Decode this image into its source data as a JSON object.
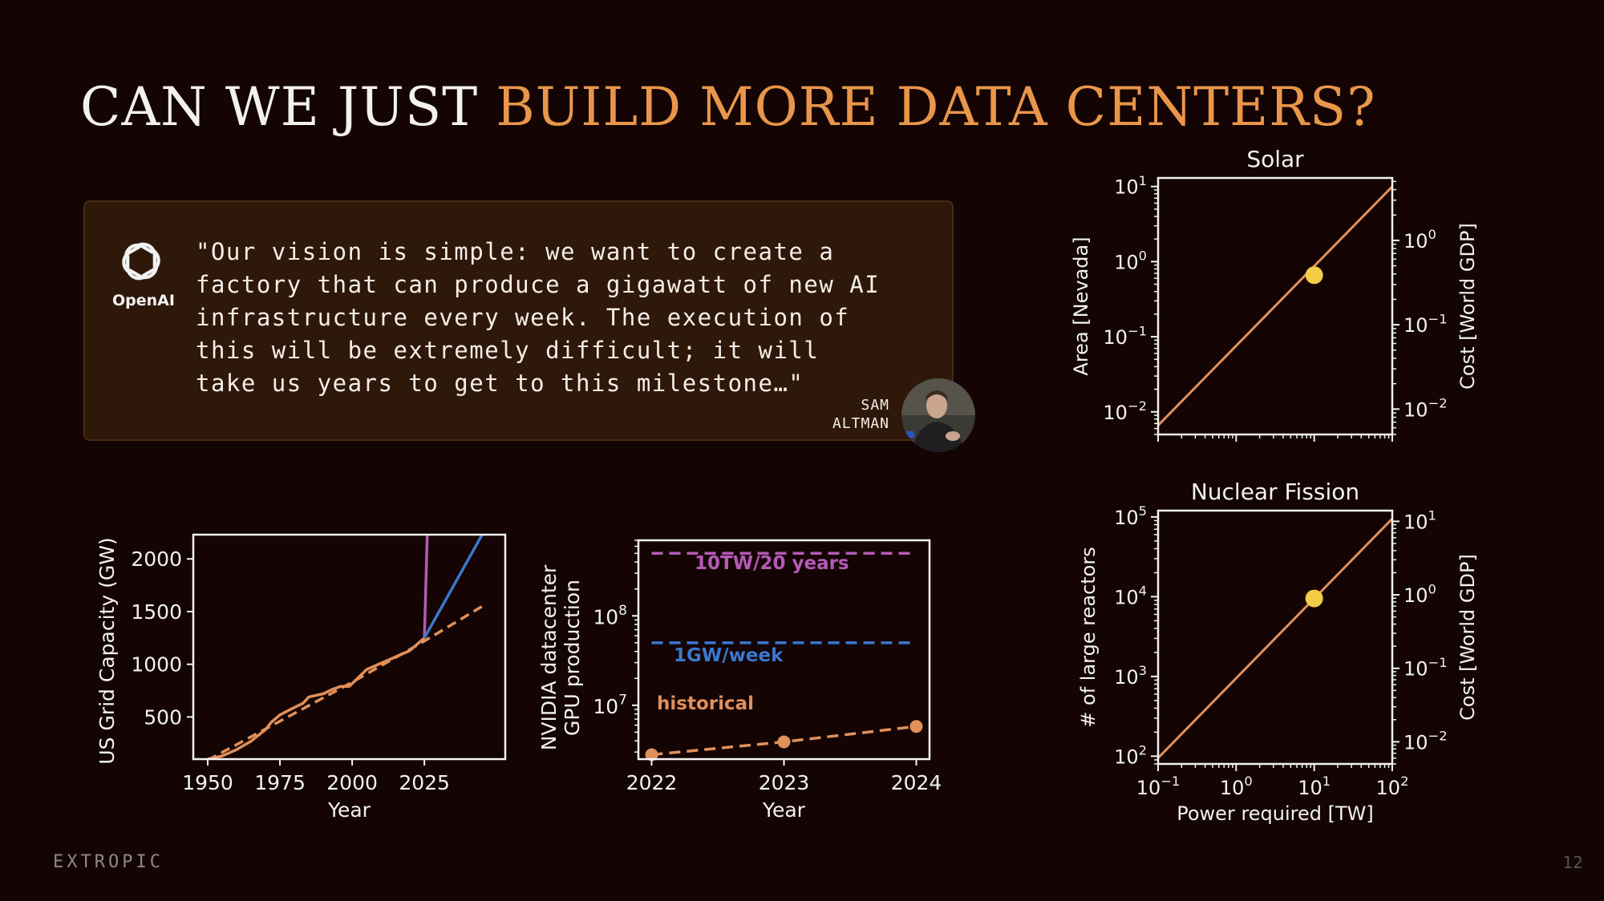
{
  "title": {
    "white": "CAN WE JUST",
    "orange": "BUILD MORE DATA CENTERS?"
  },
  "quote": {
    "brand": "OpenAI",
    "text": "\"Our vision is simple: we want to create a\nfactory that can produce a gigawatt of new AI\ninfrastructure every week. The execution of\nthis will be extremely difficult; it will\ntake us years to get to this milestone…\"",
    "author": "SAM\nALTMAN"
  },
  "footer": {
    "logo": "EXTROPIC",
    "page": "12"
  },
  "colors": {
    "orange": "#e9964a",
    "line": "#e0905a",
    "pink": "#b45ab5",
    "blue": "#3a78cf",
    "dot": "#f2cd45"
  },
  "chart_data": [
    {
      "type": "line",
      "title": "",
      "xlabel": "Year",
      "ylabel": "US Grid Capacity (GW)",
      "xlim": [
        1945,
        2053
      ],
      "ylim": [
        100,
        2230
      ],
      "xticks": [
        1950,
        1975,
        2000,
        2025
      ],
      "yticks": [
        500,
        1000,
        1500,
        2000
      ],
      "series": [
        {
          "style": "solid",
          "color": "#e0905a",
          "points": [
            [
              1950,
              100
            ],
            [
              1955,
              130
            ],
            [
              1960,
              190
            ],
            [
              1965,
              270
            ],
            [
              1970,
              380
            ],
            [
              1972,
              450
            ],
            [
              1975,
              520
            ],
            [
              1980,
              590
            ],
            [
              1983,
              630
            ],
            [
              1985,
              690
            ],
            [
              1990,
              720
            ],
            [
              1993,
              760
            ],
            [
              1996,
              790
            ],
            [
              1999,
              790
            ],
            [
              2002,
              870
            ],
            [
              2005,
              950
            ],
            [
              2010,
              1010
            ],
            [
              2015,
              1070
            ],
            [
              2020,
              1130
            ],
            [
              2025,
              1250
            ]
          ]
        },
        {
          "style": "dashed",
          "color": "#e0905a",
          "points": [
            [
              1950,
              90
            ],
            [
              1975,
              460
            ],
            [
              2000,
              830
            ],
            [
              2025,
              1220
            ],
            [
              2045,
              1550
            ]
          ]
        },
        {
          "style": "solid",
          "color": "#b45ab5",
          "points": [
            [
              2025,
              1250
            ],
            [
              2026,
              2230
            ]
          ]
        },
        {
          "style": "solid",
          "color": "#3a78cf",
          "points": [
            [
              2025,
              1250
            ],
            [
              2045,
              2230
            ]
          ]
        }
      ]
    },
    {
      "type": "line",
      "title": "",
      "xlabel": "Year",
      "ylabel": "NVIDIA datacenter\nGPU production",
      "yscale": "log",
      "xlim": [
        2021.9,
        2024.1
      ],
      "ylim": [
        2500000,
        700000000
      ],
      "xticks": [
        2022,
        2023,
        2024
      ],
      "yticks": [
        "10^7",
        "10^8"
      ],
      "series": [
        {
          "label": "10TW/20 years",
          "style": "dashed",
          "color": "#b45ab5",
          "points": [
            [
              2022,
              500000000
            ],
            [
              2024,
              500000000
            ]
          ]
        },
        {
          "label": "1GW/week",
          "style": "dashed",
          "color": "#3a78cf",
          "points": [
            [
              2022,
              50000000
            ],
            [
              2024,
              50000000
            ]
          ]
        },
        {
          "label": "historical",
          "style": "dashed-markers",
          "color": "#e0905a",
          "points": [
            [
              2022,
              2800000
            ],
            [
              2023,
              3900000
            ],
            [
              2024,
              5800000
            ]
          ]
        }
      ]
    },
    {
      "type": "line",
      "title": "Solar",
      "xlabel": "",
      "ylabel": "Area [Nevada]",
      "y2label": "Cost [World GDP]",
      "xscale": "log",
      "yscale": "log",
      "xlim": [
        0.1,
        100
      ],
      "ylim": [
        0.005,
        13
      ],
      "y2lim": [
        0.005,
        5.5
      ],
      "yticks": [
        "10^1",
        "10^0",
        "10^-1",
        "10^-2"
      ],
      "y2ticks": [
        "10^0",
        "10^-1",
        "10^-2"
      ],
      "series": [
        {
          "style": "solid",
          "color": "#e0905a",
          "points": [
            [
              0.1,
              0.0066
            ],
            [
              100,
              10
            ]
          ]
        }
      ],
      "marker": {
        "x": 10,
        "y": 0.66,
        "color": "#f2cd45"
      }
    },
    {
      "type": "line",
      "title": "Nuclear Fission",
      "xlabel": "Power required [TW]",
      "ylabel": "# of large reactors",
      "y2label": "Cost [World GDP]",
      "xscale": "log",
      "yscale": "log",
      "xlim": [
        0.1,
        100
      ],
      "ylim": [
        80,
        120000
      ],
      "y2lim": [
        0.005,
        14
      ],
      "xticks": [
        "10^-1",
        "10^0",
        "10^1",
        "10^2"
      ],
      "yticks": [
        "10^5",
        "10^4",
        "10^3",
        "10^2"
      ],
      "y2ticks": [
        "10^1",
        "10^0",
        "10^-1",
        "10^-2"
      ],
      "series": [
        {
          "style": "solid",
          "color": "#e0905a",
          "points": [
            [
              0.1,
              95
            ],
            [
              100,
              95000
            ]
          ]
        }
      ],
      "marker": {
        "x": 10,
        "y": 9500,
        "color": "#f2cd45"
      }
    }
  ]
}
